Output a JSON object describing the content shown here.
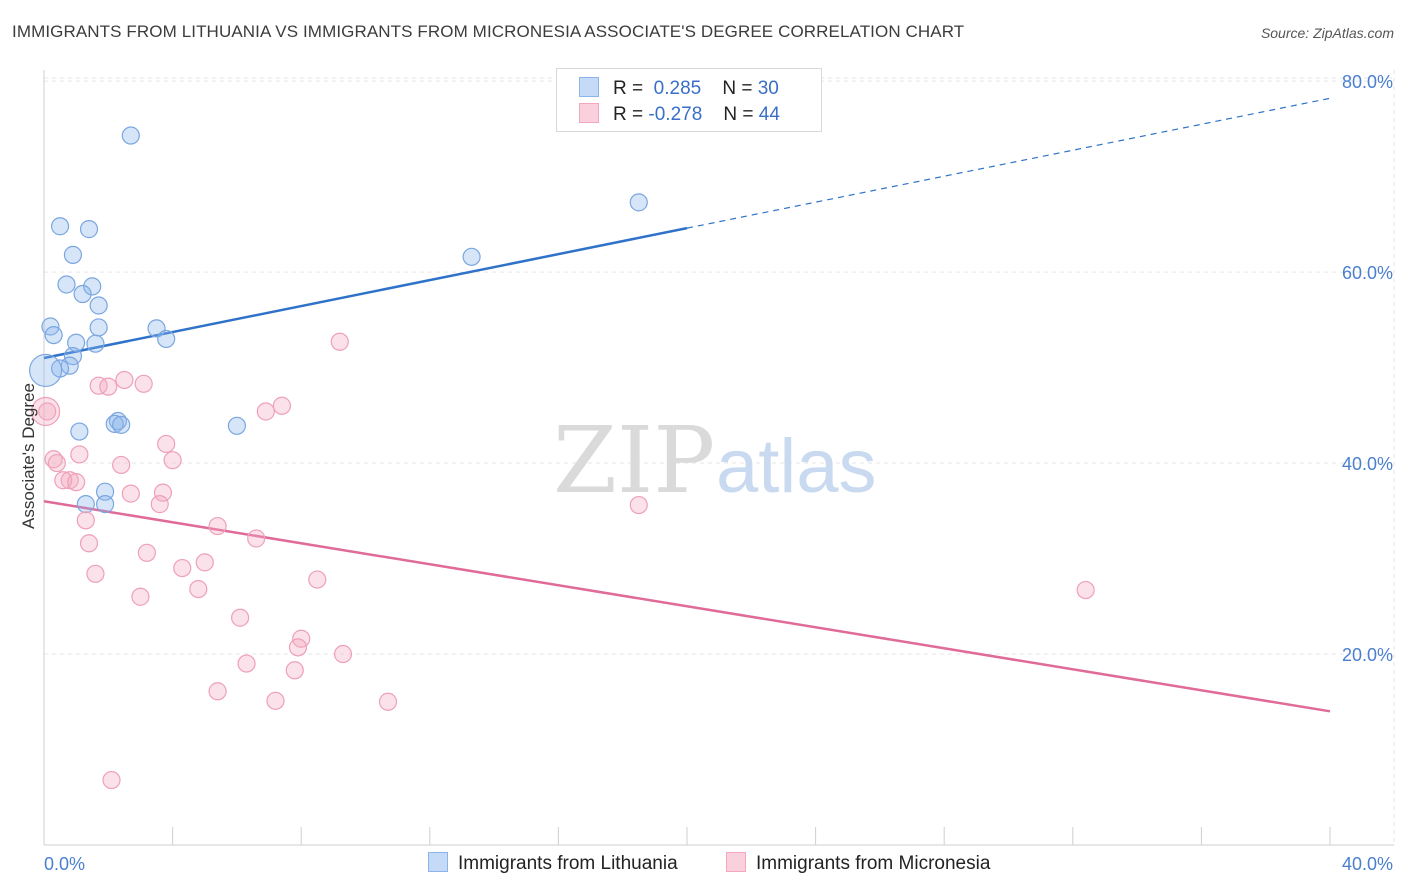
{
  "title": "IMMIGRANTS FROM LITHUANIA VS IMMIGRANTS FROM MICRONESIA ASSOCIATE'S DEGREE CORRELATION CHART",
  "source": "Source: ZipAtlas.com",
  "watermark": {
    "zip": "ZIP",
    "atlas": "atlas"
  },
  "legend": {
    "rows": [
      {
        "r_label": "R =",
        "r_value": "0.285",
        "n_label": "N =",
        "n_value": "30"
      },
      {
        "r_label": "R =",
        "r_value": "-0.278",
        "n_label": "N =",
        "n_value": "44"
      }
    ]
  },
  "chart_data": {
    "type": "scatter",
    "title": "IMMIGRANTS FROM LITHUANIA VS IMMIGRANTS FROM MICRONESIA ASSOCIATE'S DEGREE CORRELATION CHART",
    "xlabel": "",
    "ylabel": "Associate's Degree",
    "xlim": [
      0,
      40
    ],
    "ylim": [
      0,
      82
    ],
    "x_tick_labels": [
      "0.0%",
      "40.0%"
    ],
    "y_ticks": [
      20,
      40,
      60,
      80
    ],
    "y_tick_labels": [
      "20.0%",
      "40.0%",
      "60.0%",
      "80.0%"
    ],
    "grid": true,
    "legend_position": "top-center",
    "series": [
      {
        "name": "Immigrants from Lithuania",
        "color": "#8ab4ea",
        "trend_color": "#2f72c9",
        "trend": {
          "x_start": 0,
          "y_start": 51.0,
          "x_solid_end": 20,
          "y_solid_end": 64.6,
          "x_end": 40,
          "y_end": 78.2
        },
        "points": [
          [
            2.7,
            74.3
          ],
          [
            0.5,
            64.8
          ],
          [
            1.4,
            64.5
          ],
          [
            0.9,
            61.8
          ],
          [
            13.3,
            61.6
          ],
          [
            18.5,
            67.3
          ],
          [
            0.7,
            58.7
          ],
          [
            1.5,
            58.5
          ],
          [
            1.2,
            57.7
          ],
          [
            1.7,
            56.5
          ],
          [
            0.2,
            54.3
          ],
          [
            1.7,
            54.2
          ],
          [
            3.5,
            54.1
          ],
          [
            0.3,
            53.4
          ],
          [
            3.8,
            53.0
          ],
          [
            1.0,
            52.6
          ],
          [
            1.6,
            52.5
          ],
          [
            0.9,
            51.2
          ],
          [
            0.8,
            50.2
          ],
          [
            0.5,
            49.9
          ],
          [
            2.3,
            44.4
          ],
          [
            2.2,
            44.1
          ],
          [
            2.4,
            44.0
          ],
          [
            6.0,
            43.9
          ],
          [
            1.1,
            43.3
          ],
          [
            1.9,
            37.0
          ],
          [
            1.3,
            35.7
          ],
          [
            1.9,
            35.7
          ]
        ]
      },
      {
        "name": "Immigrants from Micronesia",
        "color": "#f3a8c0",
        "trend_color": "#e06a98",
        "trend": {
          "x_start": 0,
          "y_start": 36.0,
          "x_end": 40,
          "y_end": 14.0
        },
        "points": [
          [
            9.2,
            52.7
          ],
          [
            2.5,
            48.7
          ],
          [
            3.1,
            48.3
          ],
          [
            1.7,
            48.1
          ],
          [
            2.0,
            48.0
          ],
          [
            7.4,
            46.0
          ],
          [
            6.9,
            45.4
          ],
          [
            0.1,
            45.4
          ],
          [
            3.8,
            42.0
          ],
          [
            0.3,
            40.4
          ],
          [
            1.1,
            40.9
          ],
          [
            4.0,
            40.3
          ],
          [
            0.4,
            40.0
          ],
          [
            2.4,
            39.8
          ],
          [
            0.8,
            38.2
          ],
          [
            0.6,
            38.2
          ],
          [
            1.0,
            38.0
          ],
          [
            2.7,
            36.8
          ],
          [
            3.7,
            36.9
          ],
          [
            3.6,
            35.7
          ],
          [
            18.5,
            35.6
          ],
          [
            1.3,
            34.0
          ],
          [
            5.4,
            33.4
          ],
          [
            6.6,
            32.1
          ],
          [
            1.4,
            31.6
          ],
          [
            3.2,
            30.6
          ],
          [
            5.0,
            29.6
          ],
          [
            4.3,
            29.0
          ],
          [
            1.6,
            28.4
          ],
          [
            8.5,
            27.8
          ],
          [
            4.8,
            26.8
          ],
          [
            3.0,
            26.0
          ],
          [
            32.4,
            26.7
          ],
          [
            6.1,
            23.8
          ],
          [
            8.0,
            21.6
          ],
          [
            7.9,
            20.7
          ],
          [
            9.3,
            20.0
          ],
          [
            6.3,
            19.0
          ],
          [
            7.8,
            18.3
          ],
          [
            5.4,
            16.1
          ],
          [
            7.2,
            15.1
          ],
          [
            10.7,
            15.0
          ],
          [
            2.1,
            6.8
          ]
        ]
      }
    ]
  }
}
